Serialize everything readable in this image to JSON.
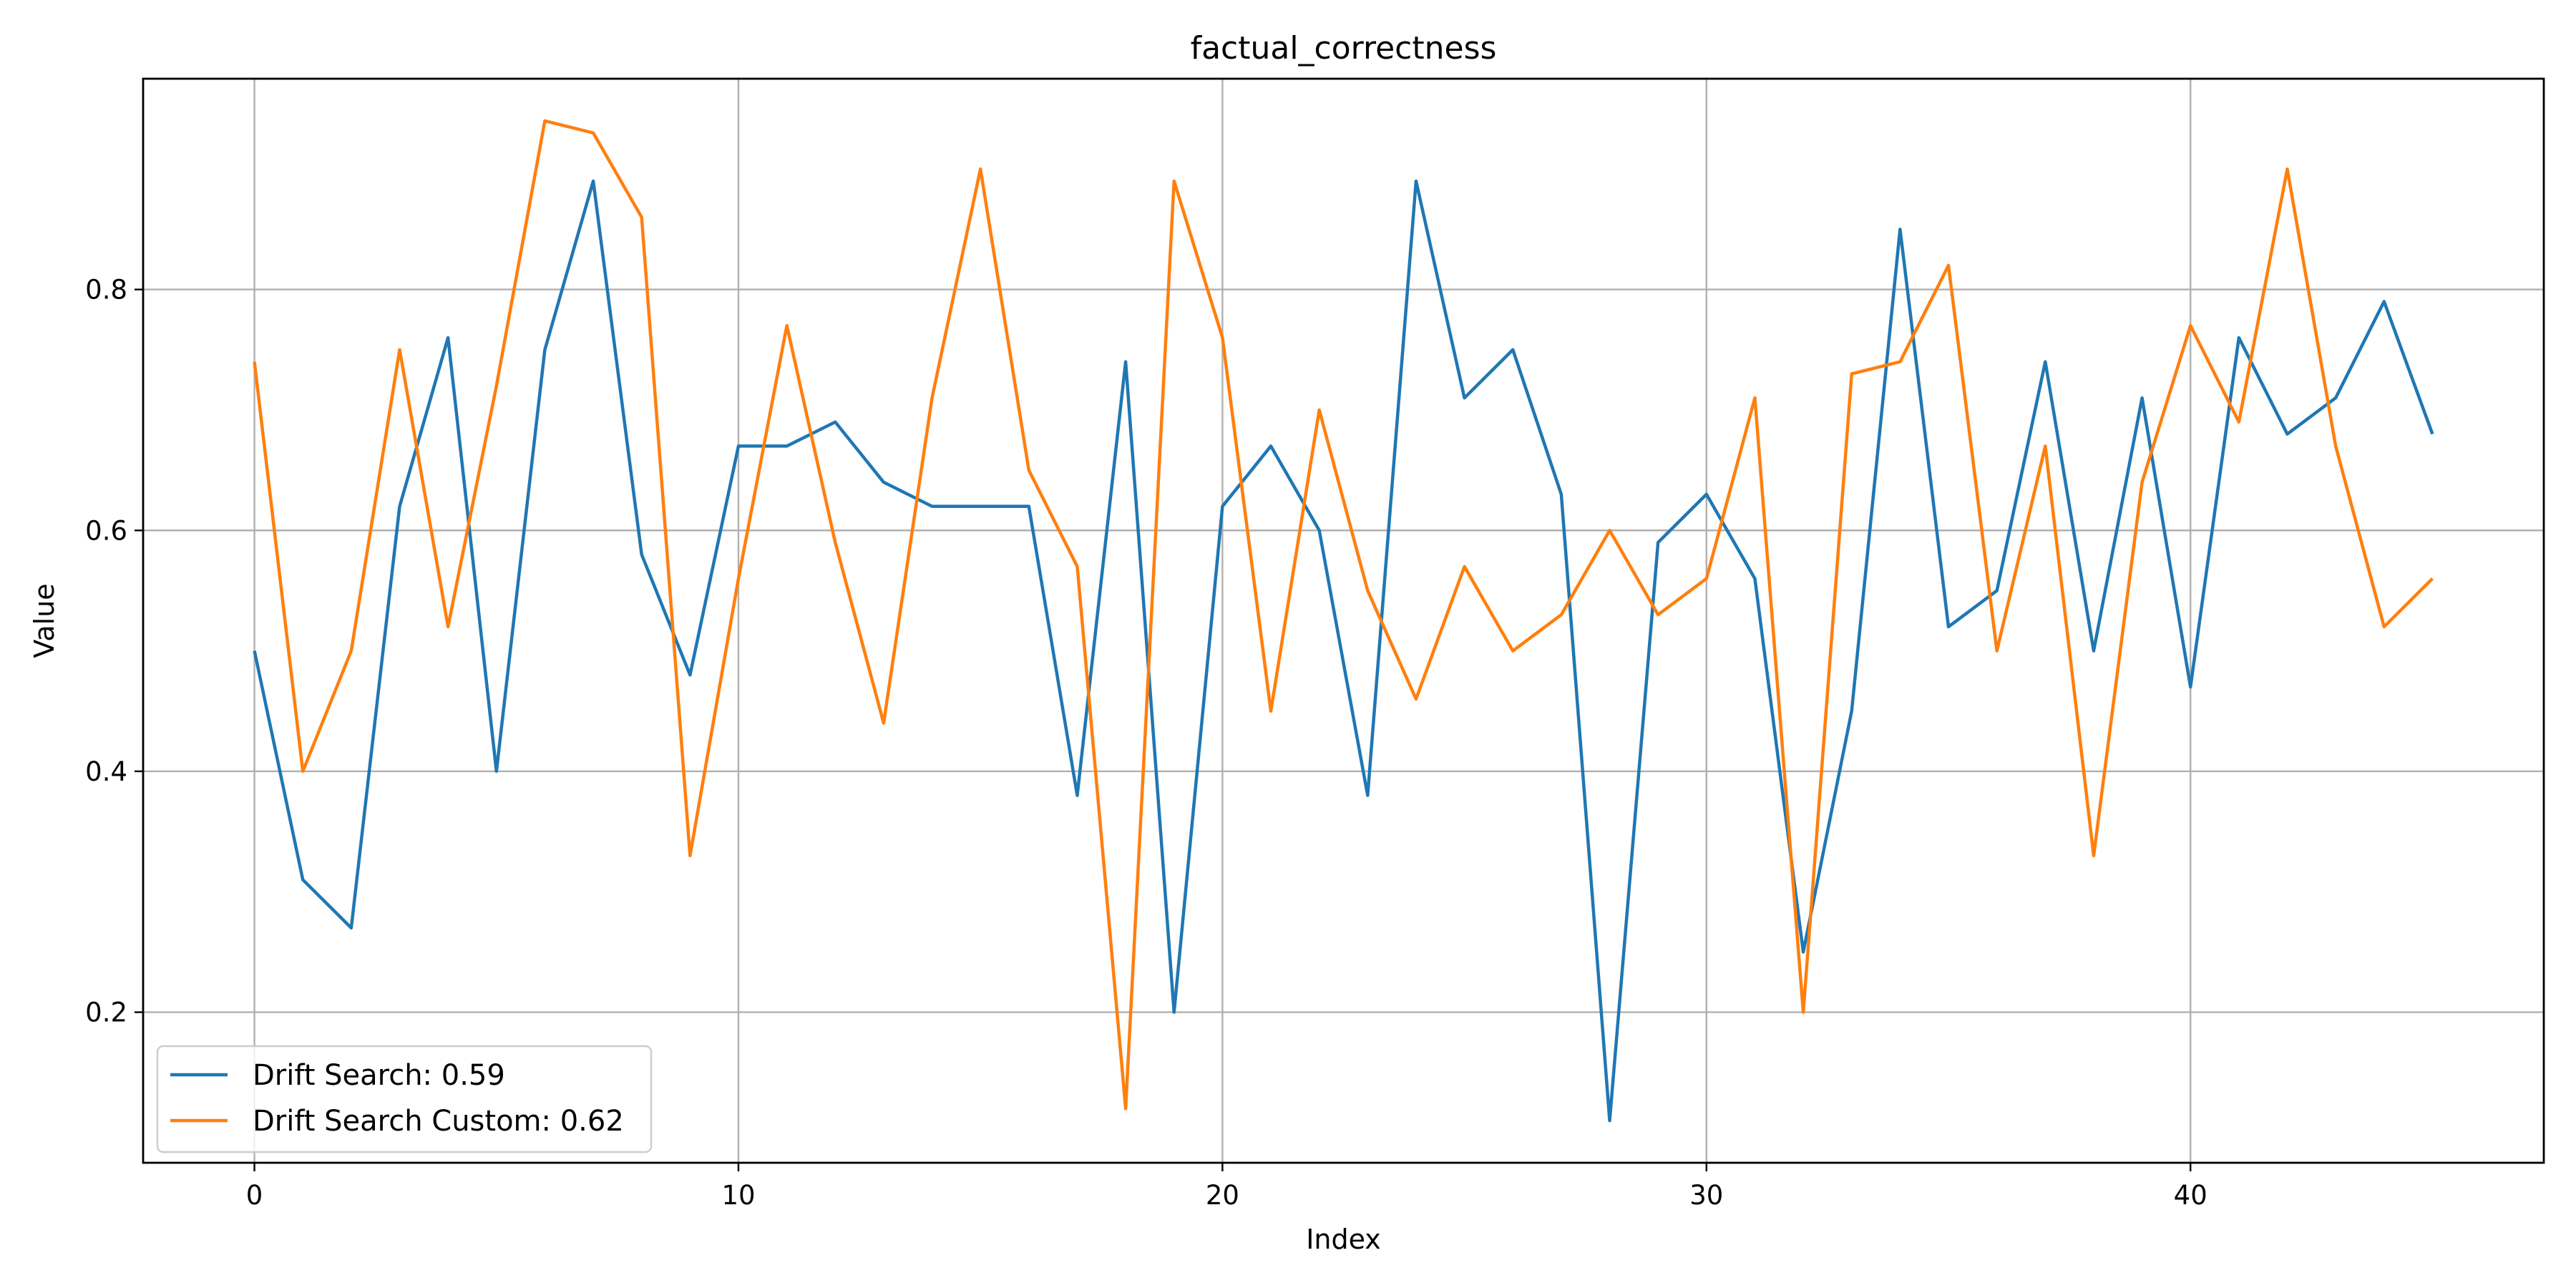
{
  "chart_data": {
    "type": "line",
    "title": "factual_correctness",
    "xlabel": "Index",
    "ylabel": "Value",
    "xlim": [
      -2.3,
      47.3
    ],
    "ylim": [
      0.075,
      0.975
    ],
    "xticks": [
      0,
      10,
      20,
      30,
      40
    ],
    "yticks": [
      0.2,
      0.4,
      0.6,
      0.8
    ],
    "ytick_labels": [
      "0.2",
      "0.4",
      "0.6",
      "0.8"
    ],
    "grid": true,
    "legend_position": "lower-left",
    "series": [
      {
        "name": "Drift Search: 0.59",
        "color": "#1f77b4",
        "values": [
          0.5,
          0.31,
          0.27,
          0.62,
          0.76,
          0.4,
          0.75,
          0.89,
          0.58,
          0.48,
          0.67,
          0.67,
          0.69,
          0.64,
          0.62,
          0.62,
          0.62,
          0.38,
          0.74,
          0.2,
          0.62,
          0.67,
          0.6,
          0.38,
          0.89,
          0.71,
          0.75,
          0.63,
          0.11,
          0.59,
          0.63,
          0.56,
          0.25,
          0.45,
          0.85,
          0.52,
          0.55,
          0.74,
          0.5,
          0.71,
          0.47,
          0.76,
          0.68,
          0.71,
          0.79,
          0.68
        ]
      },
      {
        "name": "Drift Search Custom: 0.62",
        "color": "#ff7f0e",
        "values": [
          0.74,
          0.4,
          0.5,
          0.75,
          0.52,
          0.72,
          0.94,
          0.93,
          0.86,
          0.33,
          0.56,
          0.77,
          0.59,
          0.44,
          0.71,
          0.9,
          0.65,
          0.57,
          0.12,
          0.89,
          0.76,
          0.45,
          0.7,
          0.55,
          0.46,
          0.57,
          0.5,
          0.53,
          0.6,
          0.53,
          0.56,
          0.71,
          0.2,
          0.73,
          0.74,
          0.82,
          0.5,
          0.67,
          0.33,
          0.64,
          0.77,
          0.69,
          0.9,
          0.67,
          0.52,
          0.56
        ]
      }
    ]
  }
}
